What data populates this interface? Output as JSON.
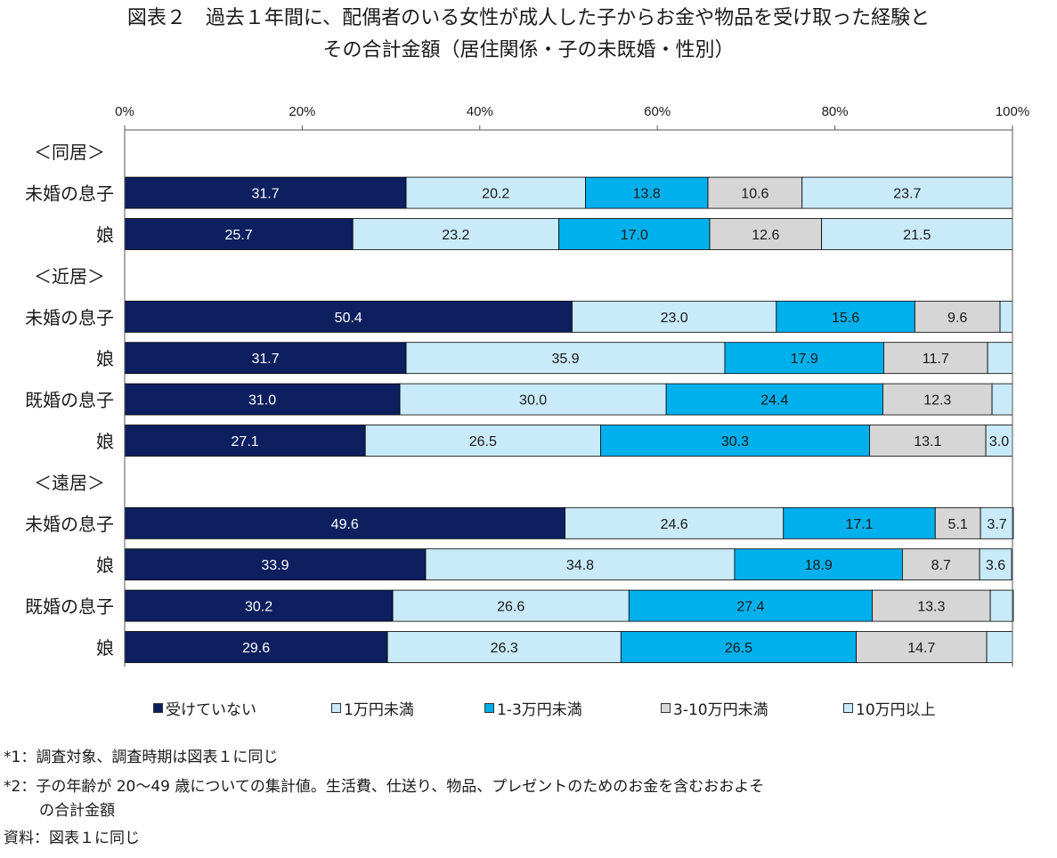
{
  "title_line1": "図表２　過去１年間に、配偶者のいる女性が成人した子からお金や物品を受け取った経験と",
  "title_line2": "その合計金額（居住関係・子の未既婚・性別）",
  "chart_data": {
    "type": "bar",
    "orientation": "horizontal",
    "stacked": "percent",
    "x_ticks": [
      "0%",
      "20%",
      "40%",
      "60%",
      "80%",
      "100%"
    ],
    "xlim": [
      0,
      100
    ],
    "grid": false,
    "legend_position": "bottom",
    "series": [
      {
        "name": "受けていない",
        "color": "#0d1f5e"
      },
      {
        "name": "1万円未満",
        "color": "#c9eaf8"
      },
      {
        "name": "1-3万円未満",
        "color": "#00b0ec"
      },
      {
        "name": "3-10万円未満",
        "color": "#d6d6d6"
      },
      {
        "name": "10万円以上",
        "color": "#c9eaf8"
      }
    ],
    "rows": [
      {
        "kind": "group",
        "label": "＜同居＞"
      },
      {
        "kind": "bar",
        "label": "未婚の息子",
        "values": [
          31.7,
          20.2,
          13.8,
          10.6,
          23.7
        ],
        "labels": [
          "31.7",
          "20.2",
          "13.8",
          "10.6",
          "23.7"
        ]
      },
      {
        "kind": "bar",
        "label": "娘",
        "values": [
          25.7,
          23.2,
          17.0,
          12.6,
          21.5
        ],
        "labels": [
          "25.7",
          "23.2",
          "17.0",
          "12.6",
          "21.5"
        ]
      },
      {
        "kind": "group",
        "label": "＜近居＞"
      },
      {
        "kind": "bar",
        "label": "未婚の息子",
        "values": [
          50.4,
          23.0,
          15.6,
          9.6,
          1.4
        ],
        "labels": [
          "50.4",
          "23.0",
          "15.6",
          "9.6",
          ""
        ]
      },
      {
        "kind": "bar",
        "label": "娘",
        "values": [
          31.7,
          35.9,
          17.9,
          11.7,
          2.8
        ],
        "labels": [
          "31.7",
          "35.9",
          "17.9",
          "11.7",
          ""
        ]
      },
      {
        "kind": "bar",
        "label": "既婚の息子",
        "values": [
          31.0,
          30.0,
          24.4,
          12.3,
          2.3
        ],
        "labels": [
          "31.0",
          "30.0",
          "24.4",
          "12.3",
          ""
        ]
      },
      {
        "kind": "bar",
        "label": "娘",
        "values": [
          27.1,
          26.5,
          30.3,
          13.1,
          3.0
        ],
        "labels": [
          "27.1",
          "26.5",
          "30.3",
          "13.1",
          "3.0"
        ]
      },
      {
        "kind": "group",
        "label": "＜遠居＞"
      },
      {
        "kind": "bar",
        "label": "未婚の息子",
        "values": [
          49.6,
          24.6,
          17.1,
          5.1,
          3.7
        ],
        "labels": [
          "49.6",
          "24.6",
          "17.1",
          "5.1",
          "3.7"
        ]
      },
      {
        "kind": "bar",
        "label": "娘",
        "values": [
          33.9,
          34.8,
          18.9,
          8.7,
          3.6
        ],
        "labels": [
          "33.9",
          "34.8",
          "18.9",
          "8.7",
          "3.6"
        ]
      },
      {
        "kind": "bar",
        "label": "既婚の息子",
        "values": [
          30.2,
          26.6,
          27.4,
          13.3,
          2.6
        ],
        "labels": [
          "30.2",
          "26.6",
          "27.4",
          "13.3",
          ""
        ]
      },
      {
        "kind": "bar",
        "label": "娘",
        "values": [
          29.6,
          26.3,
          26.5,
          14.7,
          2.9
        ],
        "labels": [
          "29.6",
          "26.3",
          "26.5",
          "14.7",
          ""
        ]
      }
    ]
  },
  "notes": {
    "note1": "*1：調査対象、調査時期は図表１に同じ",
    "note2a": "*2：子の年齢が 20～49 歳についての集計値。生活費、仕送り、物品、プレゼントのためのお金を含むおおよそ",
    "note2b": "の合計金額",
    "source": "資料：図表１に同じ"
  }
}
